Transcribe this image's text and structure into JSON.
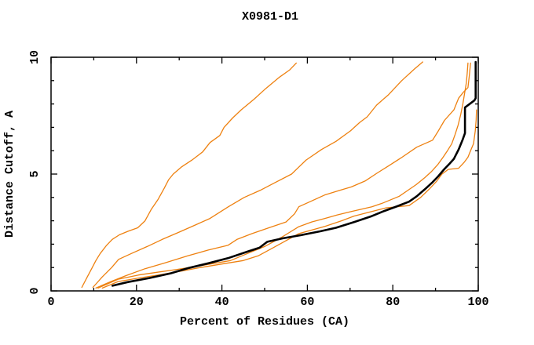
{
  "page": {
    "background": "#ffffff",
    "window_title": "X0981-D1"
  },
  "chart_data": {
    "type": "line",
    "title": "X0981-D1",
    "xlabel": "Percent of Residues (CA)",
    "ylabel": "Distance Cutoff, A",
    "xlim": [
      0,
      100
    ],
    "ylim": [
      0,
      10
    ],
    "x_major_ticks": [
      0,
      20,
      40,
      60,
      80,
      100
    ],
    "x_minor_ticks": [
      10,
      30,
      50,
      70,
      90
    ],
    "y_major_ticks": [
      0,
      5,
      10
    ],
    "y_minor_ticks": [
      1,
      2,
      3,
      4,
      6,
      7,
      8,
      9
    ],
    "grid": false,
    "legend_position": "none",
    "axis_color": "#000000",
    "orange_color": "#ee8110",
    "black_color": "#000000",
    "series": [
      {
        "name": "orange-curve-1",
        "color": "#ee8110",
        "width": 1.3,
        "points": [
          [
            7.2,
            0.15
          ],
          [
            8.5,
            0.6
          ],
          [
            9.5,
            0.95
          ],
          [
            10.5,
            1.3
          ],
          [
            11.5,
            1.6
          ],
          [
            13,
            1.95
          ],
          [
            14.3,
            2.2
          ],
          [
            16,
            2.4
          ],
          [
            18,
            2.55
          ],
          [
            20.3,
            2.7
          ],
          [
            22,
            3.0
          ],
          [
            23.5,
            3.5
          ],
          [
            25,
            3.9
          ],
          [
            26.5,
            4.4
          ],
          [
            27.5,
            4.75
          ],
          [
            28.6,
            5.0
          ],
          [
            30.5,
            5.3
          ],
          [
            33,
            5.6
          ],
          [
            35.5,
            5.95
          ],
          [
            37.2,
            6.35
          ],
          [
            39.5,
            6.65
          ],
          [
            40.5,
            7.0
          ],
          [
            42.5,
            7.4
          ],
          [
            44.5,
            7.75
          ],
          [
            47.5,
            8.2
          ],
          [
            50.2,
            8.65
          ],
          [
            53.5,
            9.15
          ],
          [
            55.8,
            9.45
          ],
          [
            57.4,
            9.75
          ]
        ]
      },
      {
        "name": "orange-curve-2",
        "color": "#ee8110",
        "width": 1.3,
        "points": [
          [
            9.8,
            0.15
          ],
          [
            12,
            0.6
          ],
          [
            14.2,
            1.0
          ],
          [
            15.8,
            1.35
          ],
          [
            18.8,
            1.6
          ],
          [
            22.5,
            1.9
          ],
          [
            26,
            2.2
          ],
          [
            29.8,
            2.5
          ],
          [
            33.5,
            2.8
          ],
          [
            37.2,
            3.1
          ],
          [
            41.5,
            3.6
          ],
          [
            45.2,
            4.0
          ],
          [
            48.9,
            4.3
          ],
          [
            52.6,
            4.65
          ],
          [
            56.3,
            5.0
          ],
          [
            59.7,
            5.6
          ],
          [
            63.3,
            6.05
          ],
          [
            66.7,
            6.4
          ],
          [
            70.1,
            6.85
          ],
          [
            72.2,
            7.2
          ],
          [
            74,
            7.45
          ],
          [
            76.2,
            7.95
          ],
          [
            79,
            8.4
          ],
          [
            82.1,
            9.0
          ],
          [
            85.1,
            9.5
          ],
          [
            87,
            9.8
          ]
        ]
      },
      {
        "name": "orange-curve-3",
        "color": "#ee8110",
        "width": 1.3,
        "points": [
          [
            10.5,
            0.12
          ],
          [
            14,
            0.4
          ],
          [
            17.5,
            0.65
          ],
          [
            22,
            0.95
          ],
          [
            26.7,
            1.2
          ],
          [
            32,
            1.5
          ],
          [
            36.8,
            1.75
          ],
          [
            41.4,
            1.95
          ],
          [
            43.5,
            2.2
          ],
          [
            47,
            2.45
          ],
          [
            51,
            2.7
          ],
          [
            55,
            2.95
          ],
          [
            57,
            3.3
          ],
          [
            58,
            3.6
          ],
          [
            61,
            3.85
          ],
          [
            64,
            4.1
          ],
          [
            67.5,
            4.3
          ],
          [
            70.3,
            4.45
          ],
          [
            73.5,
            4.7
          ],
          [
            76.4,
            5.05
          ],
          [
            79,
            5.35
          ],
          [
            82,
            5.7
          ],
          [
            85.6,
            6.15
          ],
          [
            89.3,
            6.45
          ],
          [
            90.5,
            6.8
          ],
          [
            92.1,
            7.3
          ],
          [
            94.3,
            7.75
          ],
          [
            95.4,
            8.25
          ],
          [
            96.5,
            8.5
          ],
          [
            97.6,
            8.7
          ],
          [
            97.9,
            9.2
          ],
          [
            98.2,
            9.75
          ]
        ]
      },
      {
        "name": "orange-curve-4",
        "color": "#ee8110",
        "width": 1.3,
        "points": [
          [
            11,
            0.12
          ],
          [
            15.7,
            0.5
          ],
          [
            20.5,
            0.68
          ],
          [
            24.9,
            0.8
          ],
          [
            29.5,
            0.92
          ],
          [
            34.1,
            1.05
          ],
          [
            38,
            1.17
          ],
          [
            42,
            1.3
          ],
          [
            46,
            1.6
          ],
          [
            50,
            1.9
          ],
          [
            54,
            2.3
          ],
          [
            58,
            2.75
          ],
          [
            61,
            2.95
          ],
          [
            64.1,
            3.1
          ],
          [
            67,
            3.25
          ],
          [
            70.3,
            3.4
          ],
          [
            75.1,
            3.6
          ],
          [
            77.5,
            3.75
          ],
          [
            79.5,
            3.9
          ],
          [
            81.5,
            4.05
          ],
          [
            83.5,
            4.3
          ],
          [
            85.5,
            4.55
          ],
          [
            87.5,
            4.85
          ],
          [
            89,
            5.1
          ],
          [
            90.5,
            5.4
          ],
          [
            91.7,
            5.7
          ],
          [
            92.8,
            6.0
          ],
          [
            93.8,
            6.3
          ],
          [
            94.6,
            6.7
          ],
          [
            95.3,
            7.1
          ],
          [
            95.9,
            7.55
          ],
          [
            96.4,
            8.0
          ],
          [
            96.8,
            8.45
          ],
          [
            97.2,
            8.9
          ],
          [
            97.4,
            9.3
          ],
          [
            97.6,
            9.75
          ]
        ]
      },
      {
        "name": "orange-curve-5",
        "color": "#ee8110",
        "width": 1.3,
        "points": [
          [
            12,
            0.12
          ],
          [
            15.7,
            0.4
          ],
          [
            20.5,
            0.55
          ],
          [
            25.8,
            0.7
          ],
          [
            30.5,
            0.85
          ],
          [
            35,
            1.0
          ],
          [
            40,
            1.15
          ],
          [
            45,
            1.3
          ],
          [
            48.5,
            1.5
          ],
          [
            52,
            1.85
          ],
          [
            55,
            2.15
          ],
          [
            58,
            2.45
          ],
          [
            64.1,
            2.76
          ],
          [
            68,
            3.0
          ],
          [
            70.9,
            3.2
          ],
          [
            74,
            3.35
          ],
          [
            78.3,
            3.55
          ],
          [
            83.8,
            3.65
          ],
          [
            86.5,
            4.0
          ],
          [
            88.5,
            4.35
          ],
          [
            90.3,
            4.7
          ],
          [
            91.5,
            5.0
          ],
          [
            93,
            5.2
          ],
          [
            95.4,
            5.25
          ],
          [
            96.7,
            5.5
          ],
          [
            97.6,
            5.72
          ],
          [
            98.2,
            6.0
          ],
          [
            98.9,
            6.3
          ],
          [
            99.3,
            6.85
          ],
          [
            99.5,
            7.3
          ],
          [
            99.6,
            7.75
          ]
        ]
      },
      {
        "name": "black-curve",
        "color": "#000000",
        "width": 2.6,
        "points": [
          [
            14.4,
            0.22
          ],
          [
            18,
            0.38
          ],
          [
            23,
            0.55
          ],
          [
            28,
            0.75
          ],
          [
            32.2,
            0.98
          ],
          [
            36.8,
            1.18
          ],
          [
            41.4,
            1.4
          ],
          [
            46,
            1.68
          ],
          [
            48.8,
            1.85
          ],
          [
            50.6,
            2.1
          ],
          [
            54.3,
            2.25
          ],
          [
            58,
            2.37
          ],
          [
            63,
            2.55
          ],
          [
            66.7,
            2.7
          ],
          [
            71,
            2.95
          ],
          [
            75.1,
            3.2
          ],
          [
            78,
            3.42
          ],
          [
            81,
            3.62
          ],
          [
            83.8,
            3.82
          ],
          [
            85.6,
            4.05
          ],
          [
            87.5,
            4.35
          ],
          [
            89.3,
            4.65
          ],
          [
            90.6,
            4.9
          ],
          [
            92,
            5.2
          ],
          [
            93.3,
            5.45
          ],
          [
            94.3,
            5.65
          ],
          [
            95.4,
            6.05
          ],
          [
            96.3,
            6.45
          ],
          [
            96.9,
            6.75
          ],
          [
            96.9,
            7.85
          ],
          [
            99.1,
            8.15
          ],
          [
            99.4,
            8.25
          ],
          [
            99.4,
            9.8
          ]
        ]
      }
    ]
  }
}
